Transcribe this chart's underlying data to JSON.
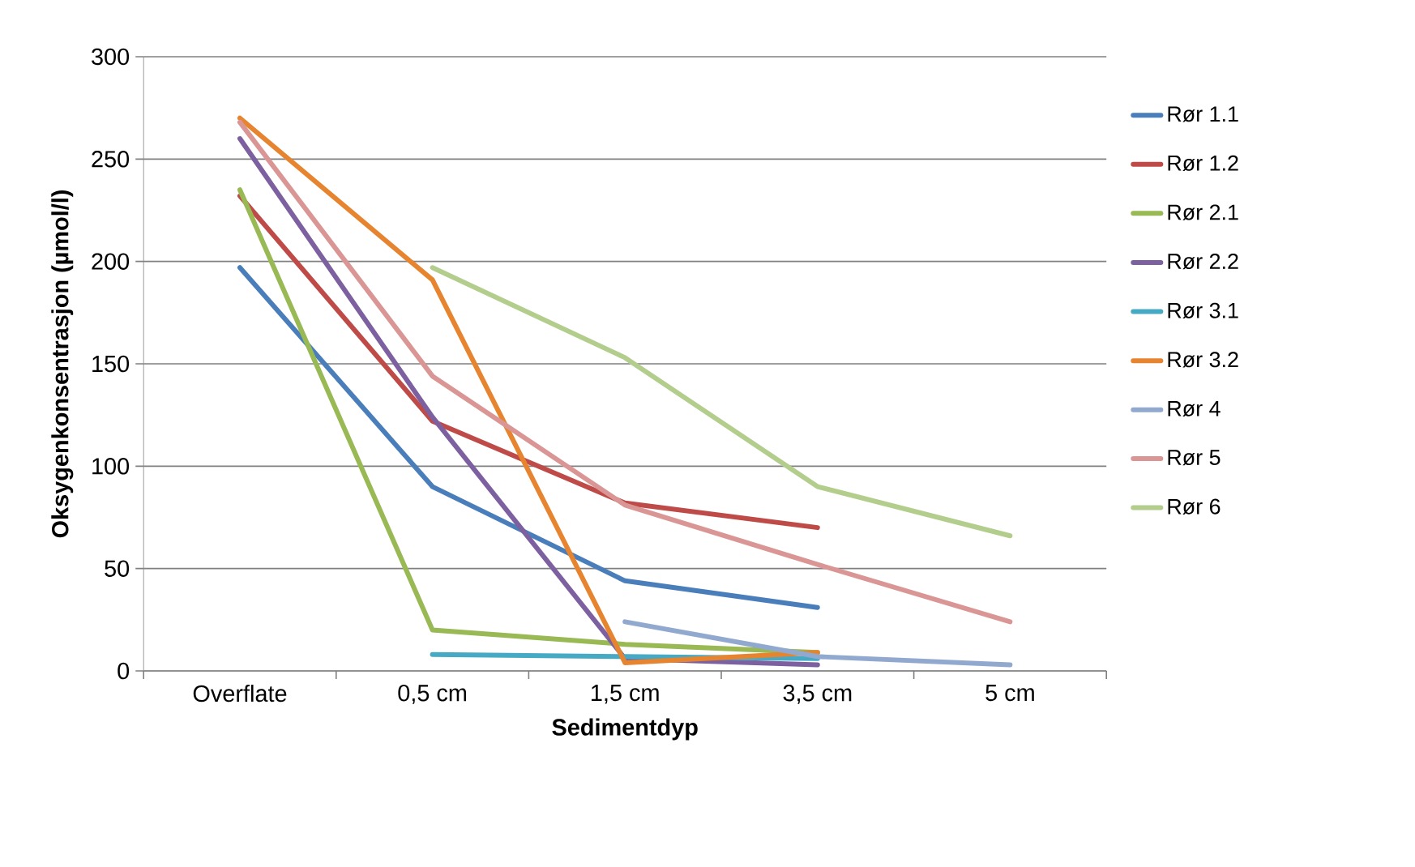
{
  "chart_data": {
    "type": "line",
    "xlabel": "Sedimentdyp",
    "ylabel": "Oksygenkonsentrasjon (µmol/l)",
    "categories": [
      "Overflate",
      "0,5 cm",
      "1,5 cm",
      "3,5 cm",
      "5 cm"
    ],
    "ylim": [
      0,
      300
    ],
    "yticks": [
      0,
      50,
      100,
      150,
      200,
      250,
      300
    ],
    "grid": "y",
    "legend": "right",
    "marker": "none",
    "line_style": "solid",
    "series": [
      {
        "name": "Rør 1.1",
        "color": "#4a7ebb",
        "values": [
          197,
          90,
          44,
          31,
          null
        ]
      },
      {
        "name": "Rør 1.2",
        "color": "#be4b48",
        "values": [
          232,
          122,
          82,
          70,
          null
        ]
      },
      {
        "name": "Rør 2.1",
        "color": "#98b954",
        "values": [
          235,
          20,
          13,
          9,
          null
        ]
      },
      {
        "name": "Rør 2.2",
        "color": "#7d60a0",
        "values": [
          260,
          124,
          6,
          3,
          null
        ]
      },
      {
        "name": "Rør 3.1",
        "color": "#46aac5",
        "values": [
          null,
          8,
          7,
          6,
          null
        ]
      },
      {
        "name": "Rør 3.2",
        "color": "#e6842f",
        "values": [
          270,
          191,
          4,
          9,
          null
        ]
      },
      {
        "name": "Rør 4",
        "color": "#92a9cf",
        "values": [
          null,
          null,
          24,
          7,
          3
        ]
      },
      {
        "name": "Rør 5",
        "color": "#d99694",
        "values": [
          268,
          144,
          81,
          52,
          24
        ]
      },
      {
        "name": "Rør 6",
        "color": "#b3cd8c",
        "values": [
          null,
          197,
          153,
          90,
          66
        ]
      }
    ]
  }
}
